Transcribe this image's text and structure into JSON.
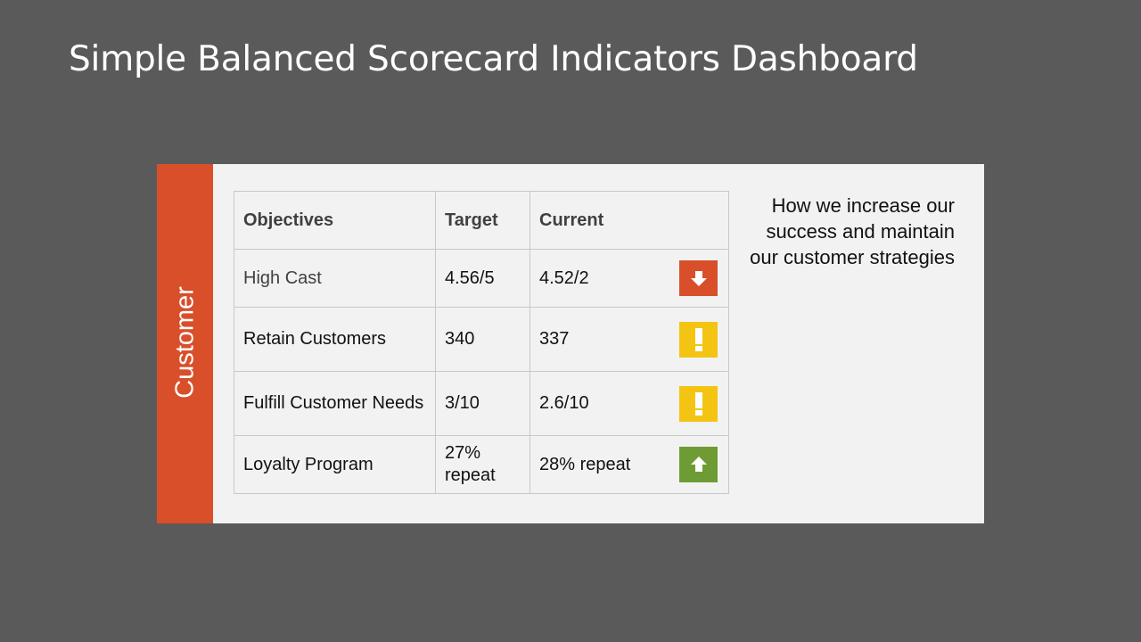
{
  "slide": {
    "title": "Simple Balanced Scorecard Indicators Dashboard"
  },
  "panel": {
    "category_label": "Customer",
    "description": "How we increase our success and maintain our customer strategies"
  },
  "table": {
    "headers": {
      "objectives": "Objectives",
      "target": "Target",
      "current": "Current"
    },
    "rows": [
      {
        "objective": "High Cast",
        "target": "4.56/5",
        "current": "4.52/2",
        "status": "down",
        "status_icon": "arrow-down-icon"
      },
      {
        "objective": "Retain Customers",
        "target": "340",
        "current": "337",
        "status": "warning",
        "status_icon": "exclamation-icon"
      },
      {
        "objective": "Fulfill Customer Needs",
        "target": "3/10",
        "current": "2.6/10",
        "status": "warning",
        "status_icon": "exclamation-icon"
      },
      {
        "objective": "Loyalty Program",
        "target": "27% repeat",
        "current": "28% repeat",
        "status": "up",
        "status_icon": "arrow-up-icon"
      }
    ]
  },
  "colors": {
    "background": "#5a5a5a",
    "panel": "#f2f2f2",
    "accent": "#d84f2a",
    "status_down": "#d84f2a",
    "status_warning": "#f4c413",
    "status_up": "#6e9b34"
  }
}
